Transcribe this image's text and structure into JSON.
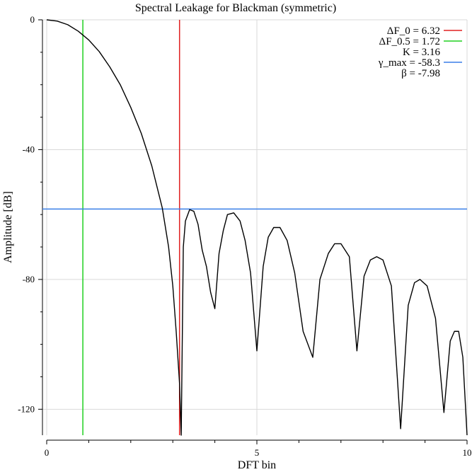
{
  "chart_data": {
    "type": "line",
    "title": "Spectral Leakage for Blackman (symmetric)",
    "xlabel": "DFT bin",
    "ylabel": "Amplitude [dB]",
    "xlim": [
      0,
      10
    ],
    "ylim": [
      -128,
      0
    ],
    "xticks": [
      0,
      5,
      10
    ],
    "yticks": [
      0,
      -40,
      -80,
      -120
    ],
    "grid": true,
    "legend_position": "top-right",
    "series": [
      {
        "name": "",
        "color": "#000000",
        "x": [
          0,
          0.25,
          0.5,
          0.75,
          1.0,
          1.25,
          1.5,
          1.75,
          2.0,
          2.25,
          2.5,
          2.75,
          2.9,
          3.0,
          3.08,
          3.16,
          3.2,
          3.25,
          3.3,
          3.4,
          3.5,
          3.6,
          3.7,
          3.8,
          3.9,
          4.0,
          4.1,
          4.2,
          4.3,
          4.45,
          4.6,
          4.72,
          4.85,
          5.0,
          5.15,
          5.27,
          5.4,
          5.55,
          5.72,
          5.9,
          6.1,
          6.33,
          6.5,
          6.7,
          6.85,
          7.0,
          7.2,
          7.38,
          7.55,
          7.7,
          7.85,
          8.0,
          8.2,
          8.42,
          8.6,
          8.75,
          8.88,
          9.05,
          9.25,
          9.45,
          9.6,
          9.7,
          9.8,
          9.9,
          10.0
        ],
        "y": [
          0,
          -0.4,
          -1.5,
          -3.5,
          -6.2,
          -9.8,
          -14.5,
          -20,
          -27,
          -35,
          -45,
          -58,
          -70,
          -82,
          -96,
          -112,
          -128,
          -70,
          -62,
          -58.5,
          -59,
          -63,
          -71,
          -76,
          -84,
          -89,
          -72,
          -65,
          -60,
          -59.5,
          -62,
          -68,
          -78,
          -102,
          -76,
          -67,
          -64,
          -64,
          -68,
          -78,
          -96,
          -104,
          -80,
          -72,
          -69,
          -69,
          -73,
          -102,
          -79,
          -74,
          -73,
          -74,
          -82,
          -126,
          -88,
          -81,
          -80,
          -82,
          -92,
          -121,
          -99,
          -96,
          -96,
          -104,
          -128
        ]
      }
    ],
    "markers": [
      {
        "label": "ΔF_0 = 6.32",
        "orientation": "vertical",
        "value": 3.16,
        "color": "#e02020"
      },
      {
        "label": "ΔF_0.5 = 1.72",
        "orientation": "vertical",
        "value": 0.86,
        "color": "#20d020"
      },
      {
        "label": "K = 3.16",
        "orientation": "none",
        "value": null,
        "color": ""
      },
      {
        "label": "γ_max = -58.3",
        "orientation": "horizontal",
        "value": -58.3,
        "color": "#3a7fe8"
      },
      {
        "label": "β = -7.98",
        "orientation": "none",
        "value": null,
        "color": ""
      }
    ]
  }
}
